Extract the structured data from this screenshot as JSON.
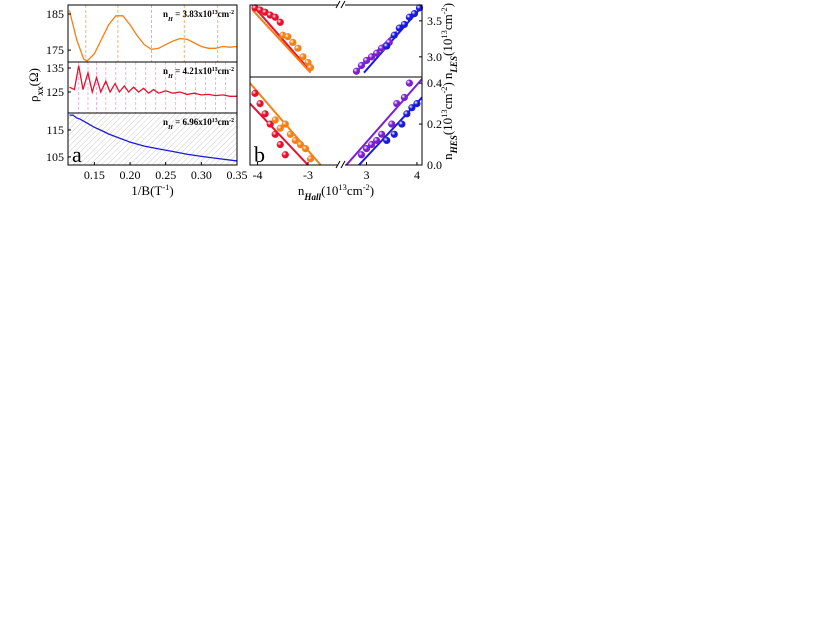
{
  "chart_data": [
    {
      "type": "line",
      "xlim": [
        0.113,
        0.35
      ],
      "ylim": [
        171.7,
        187.5
      ],
      "yticks": [
        175,
        185
      ],
      "annotation": [
        {
          "text": "n"
        },
        {
          "text": "H",
          "style": "sub"
        },
        {
          "text": " = 3.83x10"
        },
        {
          "text": "13",
          "style": "sup"
        },
        {
          "text": "cm"
        },
        {
          "text": "-2",
          "style": "sup"
        }
      ],
      "dashed_x": [
        0.138,
        0.183,
        0.23,
        0.276,
        0.323
      ],
      "dashed_color": "#f0a050",
      "series": [
        {
          "kind": "line",
          "color": "#f57f17",
          "x": [
            0.115,
            0.125,
            0.135,
            0.14,
            0.15,
            0.16,
            0.17,
            0.18,
            0.19,
            0.2,
            0.21,
            0.22,
            0.23,
            0.24,
            0.25,
            0.26,
            0.27,
            0.28,
            0.29,
            0.3,
            0.31,
            0.32,
            0.33,
            0.34,
            0.35
          ],
          "values": [
            186,
            178,
            172.5,
            172,
            174,
            178,
            182,
            184.5,
            184.5,
            182,
            179,
            176.5,
            175.2,
            175.5,
            176.5,
            177.5,
            178.2,
            178,
            177,
            176,
            175.5,
            175.5,
            176,
            175.8,
            176
          ]
        }
      ]
    },
    {
      "type": "line",
      "xlim": [
        0.113,
        0.35
      ],
      "ylim": [
        116.25,
        137.5
      ],
      "yticks": [
        125,
        135
      ],
      "y_label": [
        {
          "text": "ρ"
        },
        {
          "text": "xx",
          "style": "sub"
        },
        {
          "text": "(Ω)"
        }
      ],
      "annotation": [
        {
          "text": "n"
        },
        {
          "text": "H",
          "style": "sub"
        },
        {
          "text": " = 4.21x10"
        },
        {
          "text": "13",
          "style": "sup"
        },
        {
          "text": "cm"
        },
        {
          "text": "-2",
          "style": "sup"
        }
      ],
      "dashed_x": [
        0.128,
        0.141,
        0.153,
        0.166,
        0.18,
        0.194,
        0.208,
        0.222,
        0.236,
        0.25,
        0.264,
        0.278,
        0.292,
        0.306,
        0.32,
        0.334
      ],
      "dashed_color": "#f0a0d0",
      "series": [
        {
          "kind": "line",
          "color": "#e8112d",
          "x": [
            0.115,
            0.122,
            0.128,
            0.134,
            0.141,
            0.147,
            0.153,
            0.159,
            0.166,
            0.172,
            0.179,
            0.185,
            0.192,
            0.198,
            0.205,
            0.212,
            0.219,
            0.226,
            0.233,
            0.24,
            0.25,
            0.26,
            0.27,
            0.28,
            0.29,
            0.3,
            0.31,
            0.32,
            0.33,
            0.34,
            0.35
          ],
          "values": [
            127,
            126,
            136,
            126,
            133,
            125,
            131,
            125,
            129.5,
            125,
            128.5,
            125,
            127.5,
            125,
            127,
            125,
            126.5,
            124.5,
            126,
            124.5,
            125.5,
            124.5,
            125,
            124,
            124.5,
            123.8,
            124,
            123.5,
            123.8,
            123.2,
            123.2
          ]
        }
      ]
    },
    {
      "type": "line",
      "xlim": [
        0.113,
        0.35
      ],
      "ylim": [
        102,
        121.3
      ],
      "yticks": [
        105,
        115
      ],
      "hatch": true,
      "xticks": [
        0.15,
        {
          "value": 0.2,
          "label": "0.20"
        },
        0.25,
        {
          "value": 0.3,
          "label": "0.30"
        },
        0.35
      ],
      "x_label": [
        {
          "text": "1/B(T"
        },
        {
          "text": "-1",
          "style": "sup"
        },
        {
          "text": ")"
        }
      ],
      "panel_label": "a",
      "annotation": [
        {
          "text": "n"
        },
        {
          "text": "H",
          "style": "sub"
        },
        {
          "text": " = 6.96x10"
        },
        {
          "text": "13",
          "style": "sup"
        },
        {
          "text": "cm"
        },
        {
          "text": "-2",
          "style": "sup"
        }
      ],
      "series": [
        {
          "kind": "line",
          "color": "#1a1adb",
          "x": [
            0.115,
            0.12,
            0.125,
            0.13,
            0.14,
            0.15,
            0.16,
            0.17,
            0.18,
            0.2,
            0.22,
            0.24,
            0.26,
            0.28,
            0.3,
            0.32,
            0.35
          ],
          "values": [
            120.5,
            120.5,
            119.5,
            119,
            117.5,
            116,
            114.8,
            113.5,
            112.5,
            110.5,
            109,
            108,
            107,
            106,
            105.2,
            104.5,
            103.5
          ]
        }
      ]
    },
    {
      "type": "scatter",
      "xlim_segments": [
        [
          -4.15,
          -2.46
        ],
        [
          2.38,
          4.1
        ]
      ],
      "ylim": [
        2.72,
        3.72
      ],
      "yticks": [
        {
          "value": 3,
          "label": "3.0"
        },
        3.5
      ],
      "y_axis_side": "right",
      "y_label": [
        {
          "text": "n"
        },
        {
          "text": "LES",
          "style": "sub"
        },
        {
          "text": "(10"
        },
        {
          "text": "13",
          "style": "sup"
        },
        {
          "text": "cm"
        },
        {
          "text": "-2",
          "style": "sup"
        },
        {
          "text": ")"
        }
      ],
      "series": [
        {
          "kind": "line",
          "color": "#e8112d",
          "x": [
            -4.1,
            -2.95
          ],
          "values": [
            3.72,
            2.8
          ]
        },
        {
          "kind": "line",
          "color": "#f57f17",
          "x": [
            -4.1,
            -2.95
          ],
          "values": [
            3.65,
            2.78
          ]
        },
        {
          "kind": "line",
          "color": "#7b1fd1",
          "x": [
            2.78,
            3.6
          ],
          "values": [
            2.78,
            3.35
          ]
        },
        {
          "kind": "line",
          "color": "#1a1adb",
          "x": [
            2.95,
            4.1
          ],
          "values": [
            2.78,
            3.7
          ]
        },
        {
          "kind": "scatter",
          "color": "#e8112d",
          "x": [
            -4.05,
            -3.95,
            -3.85,
            -3.75,
            -3.65,
            -3.55
          ],
          "values": [
            3.68,
            3.65,
            3.62,
            3.58,
            3.55,
            3.48
          ]
        },
        {
          "kind": "scatter",
          "color": "#f57f17",
          "x": [
            -3.5,
            -3.4,
            -3.3,
            -3.2,
            -3.1,
            -3.0,
            -2.95
          ],
          "values": [
            3.3,
            3.28,
            3.2,
            3.12,
            3.0,
            2.92,
            2.85
          ]
        },
        {
          "kind": "scatter",
          "color": "#7b1fd1",
          "x": [
            2.8,
            2.9,
            3.0,
            3.1,
            3.2,
            3.3,
            3.45
          ],
          "values": [
            2.8,
            2.88,
            2.95,
            3.0,
            3.05,
            3.12,
            3.2
          ]
        },
        {
          "kind": "scatter",
          "color": "#1a1adb",
          "x": [
            3.4,
            3.55,
            3.65,
            3.75,
            3.85,
            3.95,
            4.05
          ],
          "values": [
            3.15,
            3.3,
            3.4,
            3.45,
            3.55,
            3.6,
            3.68
          ]
        }
      ]
    },
    {
      "type": "scatter",
      "xlim_segments": [
        [
          -4.15,
          -2.46
        ],
        [
          2.38,
          4.1
        ]
      ],
      "ylim": [
        0,
        0.43
      ],
      "yticks": [
        {
          "value": 0,
          "label": "0.0"
        },
        0.2,
        0.4
      ],
      "y_axis_side": "right",
      "xticks": [
        -4,
        -3,
        3,
        4
      ],
      "x_label": [
        {
          "text": "n"
        },
        {
          "text": "Hall",
          "style": "sub"
        },
        {
          "text": "(10"
        },
        {
          "text": "13",
          "style": "sup"
        },
        {
          "text": "cm"
        },
        {
          "text": "-2",
          "style": "sup"
        },
        {
          "text": ")"
        }
      ],
      "y_label": [
        {
          "text": "n"
        },
        {
          "text": "HES",
          "style": "sub"
        },
        {
          "text": "(10"
        },
        {
          "text": "13",
          "style": "sup"
        },
        {
          "text": "cm"
        },
        {
          "text": "-2",
          "style": "sup"
        },
        {
          "text": ")"
        }
      ],
      "panel_label": "b",
      "series": [
        {
          "kind": "line",
          "color": "#e8112d",
          "x": [
            -4.15,
            -3.0
          ],
          "values": [
            0.3,
            0
          ]
        },
        {
          "kind": "line",
          "color": "#f57f17",
          "x": [
            -4.15,
            -2.75
          ],
          "values": [
            0.4,
            0
          ]
        },
        {
          "kind": "line",
          "color": "#7b1fd1",
          "x": [
            2.6,
            4.1
          ],
          "values": [
            0,
            0.42
          ]
        },
        {
          "kind": "line",
          "color": "#1a1adb",
          "x": [
            2.85,
            4.1
          ],
          "values": [
            0,
            0.33
          ]
        },
        {
          "kind": "scatter",
          "color": "#e8112d",
          "x": [
            -4.05,
            -3.95,
            -3.85,
            -3.75,
            -3.65,
            -3.55,
            -3.45
          ],
          "values": [
            0.35,
            0.3,
            0.25,
            0.2,
            0.15,
            0.1,
            0.05
          ]
        },
        {
          "kind": "scatter",
          "color": "#f57f17",
          "x": [
            -3.65,
            -3.55,
            -3.45,
            -3.35,
            -3.25,
            -3.15,
            -3.05,
            -2.95
          ],
          "values": [
            0.22,
            0.18,
            0.2,
            0.15,
            0.12,
            0.1,
            0.08,
            0.03
          ]
        },
        {
          "kind": "scatter",
          "color": "#7b1fd1",
          "x": [
            2.9,
            3.0,
            3.1,
            3.2,
            3.3,
            3.5,
            3.6,
            3.75,
            3.85
          ],
          "values": [
            0.05,
            0.08,
            0.1,
            0.12,
            0.15,
            0.2,
            0.3,
            0.33,
            0.4
          ]
        },
        {
          "kind": "scatter",
          "color": "#1a1adb",
          "x": [
            3.4,
            3.55,
            3.7,
            3.8,
            3.9,
            4.0
          ],
          "values": [
            0.12,
            0.15,
            0.2,
            0.25,
            0.28,
            0.3
          ]
        }
      ]
    }
  ]
}
